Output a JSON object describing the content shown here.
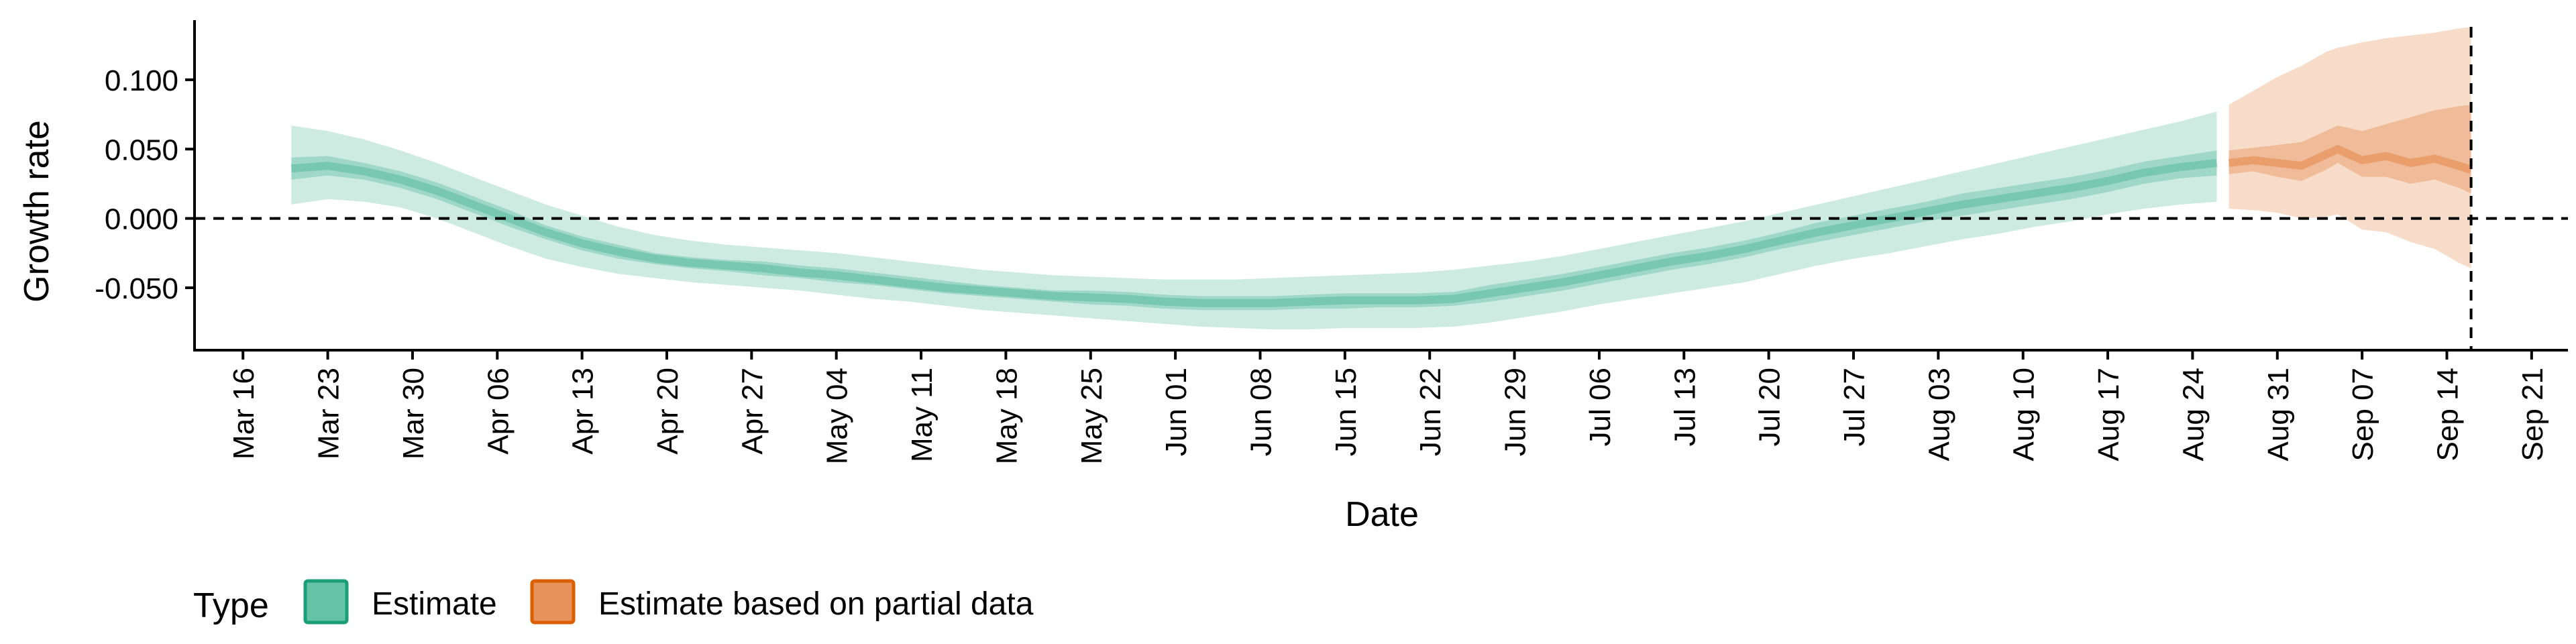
{
  "chart_data": {
    "type": "area",
    "title": "",
    "xlabel": "Date",
    "ylabel": "Growth rate",
    "ylim": [
      -0.095,
      0.143
    ],
    "xlim": [
      "2020-03-12",
      "2020-09-24"
    ],
    "x_ticks": [
      "2020-03-16",
      "2020-03-23",
      "2020-03-30",
      "2020-04-06",
      "2020-04-13",
      "2020-04-20",
      "2020-04-27",
      "2020-05-04",
      "2020-05-11",
      "2020-05-18",
      "2020-05-25",
      "2020-06-01",
      "2020-06-08",
      "2020-06-15",
      "2020-06-22",
      "2020-06-29",
      "2020-07-06",
      "2020-07-13",
      "2020-07-20",
      "2020-07-27",
      "2020-08-03",
      "2020-08-10",
      "2020-08-17",
      "2020-08-24",
      "2020-08-31",
      "2020-09-07",
      "2020-09-14",
      "2020-09-21"
    ],
    "x_tick_labels": [
      "Mar 16",
      "Mar 23",
      "Mar 30",
      "Apr 06",
      "Apr 13",
      "Apr 20",
      "Apr 27",
      "May 04",
      "May 11",
      "May 18",
      "May 25",
      "Jun 01",
      "Jun 08",
      "Jun 15",
      "Jun 22",
      "Jun 29",
      "Jul 06",
      "Jul 13",
      "Jul 20",
      "Jul 27",
      "Aug 03",
      "Aug 10",
      "Aug 17",
      "Aug 24",
      "Aug 31",
      "Sep 07",
      "Sep 14",
      "Sep 21"
    ],
    "y_ticks": [
      -0.05,
      0.0,
      0.05,
      0.1
    ],
    "y_tick_labels": [
      "-0.050",
      "0.000",
      "0.050",
      "0.100"
    ],
    "hline": 0.0,
    "vline": "2020-09-16",
    "grid": false,
    "legend": {
      "title": "Type",
      "position": "bottom-left"
    },
    "series": [
      {
        "name": "Estimate",
        "color": "#1b9e77",
        "fill": "#66c2a5",
        "x": [
          "2020-03-20",
          "2020-03-23",
          "2020-03-26",
          "2020-03-29",
          "2020-04-01",
          "2020-04-04",
          "2020-04-07",
          "2020-04-10",
          "2020-04-13",
          "2020-04-16",
          "2020-04-19",
          "2020-04-22",
          "2020-04-25",
          "2020-04-28",
          "2020-05-01",
          "2020-05-04",
          "2020-05-07",
          "2020-05-10",
          "2020-05-13",
          "2020-05-16",
          "2020-05-19",
          "2020-05-22",
          "2020-05-25",
          "2020-05-28",
          "2020-05-31",
          "2020-06-03",
          "2020-06-06",
          "2020-06-09",
          "2020-06-12",
          "2020-06-15",
          "2020-06-18",
          "2020-06-21",
          "2020-06-24",
          "2020-06-27",
          "2020-06-30",
          "2020-07-03",
          "2020-07-06",
          "2020-07-09",
          "2020-07-12",
          "2020-07-15",
          "2020-07-18",
          "2020-07-21",
          "2020-07-24",
          "2020-07-27",
          "2020-07-30",
          "2020-08-02",
          "2020-08-05",
          "2020-08-08",
          "2020-08-11",
          "2020-08-14",
          "2020-08-17",
          "2020-08-20",
          "2020-08-23",
          "2020-08-26"
        ],
        "median": [
          0.036,
          0.038,
          0.034,
          0.028,
          0.02,
          0.01,
          0.0,
          -0.01,
          -0.018,
          -0.024,
          -0.029,
          -0.032,
          -0.034,
          -0.036,
          -0.039,
          -0.041,
          -0.044,
          -0.047,
          -0.05,
          -0.052,
          -0.054,
          -0.056,
          -0.057,
          -0.058,
          -0.06,
          -0.061,
          -0.061,
          -0.061,
          -0.06,
          -0.059,
          -0.059,
          -0.059,
          -0.058,
          -0.054,
          -0.05,
          -0.046,
          -0.041,
          -0.036,
          -0.031,
          -0.027,
          -0.022,
          -0.016,
          -0.01,
          -0.005,
          0.0,
          0.005,
          0.01,
          0.014,
          0.018,
          0.022,
          0.027,
          0.033,
          0.037,
          0.04
        ],
        "ci50_lower": [
          0.028,
          0.031,
          0.028,
          0.022,
          0.014,
          0.004,
          -0.006,
          -0.015,
          -0.023,
          -0.029,
          -0.033,
          -0.036,
          -0.038,
          -0.041,
          -0.043,
          -0.046,
          -0.048,
          -0.051,
          -0.054,
          -0.056,
          -0.058,
          -0.06,
          -0.062,
          -0.063,
          -0.065,
          -0.066,
          -0.066,
          -0.066,
          -0.065,
          -0.065,
          -0.064,
          -0.064,
          -0.063,
          -0.06,
          -0.056,
          -0.052,
          -0.047,
          -0.042,
          -0.037,
          -0.033,
          -0.028,
          -0.022,
          -0.017,
          -0.012,
          -0.007,
          -0.002,
          0.002,
          0.006,
          0.01,
          0.014,
          0.019,
          0.025,
          0.029,
          0.031
        ],
        "ci50_upper": [
          0.044,
          0.045,
          0.04,
          0.034,
          0.026,
          0.016,
          0.006,
          -0.005,
          -0.013,
          -0.019,
          -0.025,
          -0.028,
          -0.03,
          -0.031,
          -0.034,
          -0.036,
          -0.039,
          -0.042,
          -0.045,
          -0.048,
          -0.05,
          -0.052,
          -0.052,
          -0.053,
          -0.055,
          -0.056,
          -0.056,
          -0.056,
          -0.055,
          -0.054,
          -0.054,
          -0.054,
          -0.053,
          -0.048,
          -0.044,
          -0.04,
          -0.035,
          -0.03,
          -0.025,
          -0.021,
          -0.016,
          -0.01,
          -0.003,
          0.002,
          0.007,
          0.012,
          0.018,
          0.022,
          0.026,
          0.03,
          0.035,
          0.041,
          0.045,
          0.049
        ],
        "ci90_lower": [
          0.01,
          0.014,
          0.012,
          0.008,
          0.0,
          -0.01,
          -0.02,
          -0.029,
          -0.035,
          -0.04,
          -0.043,
          -0.046,
          -0.048,
          -0.05,
          -0.052,
          -0.055,
          -0.058,
          -0.06,
          -0.063,
          -0.066,
          -0.068,
          -0.07,
          -0.072,
          -0.074,
          -0.076,
          -0.078,
          -0.079,
          -0.08,
          -0.08,
          -0.079,
          -0.079,
          -0.079,
          -0.078,
          -0.075,
          -0.071,
          -0.067,
          -0.062,
          -0.058,
          -0.054,
          -0.05,
          -0.046,
          -0.04,
          -0.034,
          -0.029,
          -0.025,
          -0.02,
          -0.015,
          -0.011,
          -0.006,
          -0.002,
          0.003,
          0.007,
          0.01,
          0.012
        ],
        "ci90_upper": [
          0.067,
          0.063,
          0.057,
          0.049,
          0.04,
          0.03,
          0.02,
          0.01,
          0.002,
          -0.006,
          -0.012,
          -0.016,
          -0.019,
          -0.021,
          -0.023,
          -0.025,
          -0.028,
          -0.031,
          -0.034,
          -0.037,
          -0.039,
          -0.041,
          -0.042,
          -0.043,
          -0.044,
          -0.044,
          -0.044,
          -0.043,
          -0.042,
          -0.041,
          -0.04,
          -0.039,
          -0.037,
          -0.034,
          -0.031,
          -0.027,
          -0.022,
          -0.017,
          -0.012,
          -0.007,
          -0.002,
          0.004,
          0.01,
          0.016,
          0.022,
          0.028,
          0.034,
          0.04,
          0.046,
          0.052,
          0.058,
          0.064,
          0.07,
          0.077
        ]
      },
      {
        "name": "Estimate based on partial data",
        "color": "#d95f02",
        "fill": "#e6925a",
        "x": [
          "2020-08-27",
          "2020-08-29",
          "2020-08-31",
          "2020-09-02",
          "2020-09-04",
          "2020-09-05",
          "2020-09-07",
          "2020-09-09",
          "2020-09-11",
          "2020-09-13",
          "2020-09-15",
          "2020-09-16"
        ],
        "median": [
          0.04,
          0.042,
          0.04,
          0.038,
          0.046,
          0.05,
          0.042,
          0.045,
          0.04,
          0.043,
          0.038,
          0.035
        ],
        "ci50_lower": [
          0.032,
          0.034,
          0.03,
          0.027,
          0.035,
          0.04,
          0.03,
          0.03,
          0.025,
          0.028,
          0.022,
          0.018
        ],
        "ci50_upper": [
          0.049,
          0.051,
          0.053,
          0.055,
          0.063,
          0.067,
          0.063,
          0.068,
          0.073,
          0.078,
          0.081,
          0.082
        ],
        "ci90_lower": [
          0.007,
          0.006,
          0.004,
          0.0,
          0.001,
          0.003,
          -0.008,
          -0.01,
          -0.017,
          -0.022,
          -0.032,
          -0.036
        ],
        "ci90_upper": [
          0.082,
          0.092,
          0.102,
          0.11,
          0.12,
          0.123,
          0.127,
          0.13,
          0.132,
          0.134,
          0.137,
          0.138
        ]
      }
    ]
  }
}
